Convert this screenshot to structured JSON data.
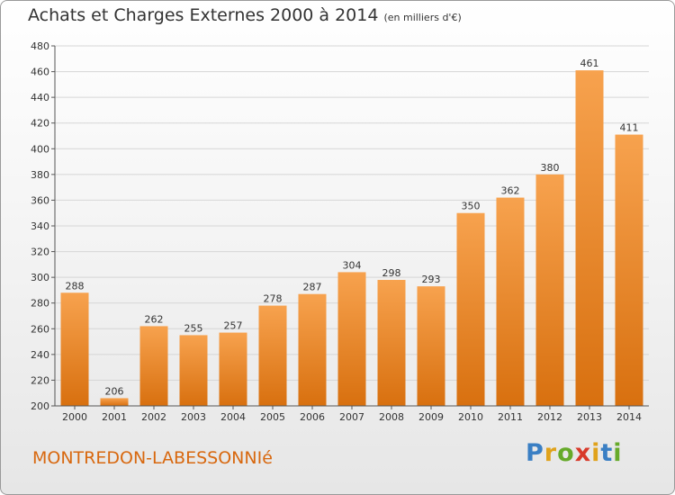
{
  "title": "Achats et Charges Externes 2000 à 2014",
  "subtitle": "(en milliers d'€)",
  "town": "MONTREDON-LABESSONNIé",
  "logo": {
    "letters": [
      "P",
      "r",
      "o",
      "x",
      "i",
      "t",
      "i"
    ],
    "colors": [
      "#3a7fc4",
      "#e0a21b",
      "#66aa2a",
      "#d83a2a",
      "#e0a21b",
      "#3a7fc4",
      "#66aa2a"
    ]
  },
  "colors": {
    "bar_light": "#f7a24e",
    "bar_dark": "#d8700f",
    "grid": "#d6d6d6",
    "axis": "#555555"
  },
  "chart_data": {
    "type": "bar",
    "title": "Achats et Charges Externes 2000 à 2014",
    "subtitle": "(en milliers d'€)",
    "categories": [
      "2000",
      "2001",
      "2002",
      "2003",
      "2004",
      "2005",
      "2006",
      "2007",
      "2008",
      "2009",
      "2010",
      "2011",
      "2012",
      "2013",
      "2014"
    ],
    "values": [
      288,
      206,
      262,
      255,
      257,
      278,
      287,
      304,
      298,
      293,
      350,
      362,
      380,
      461,
      411
    ],
    "ylim": [
      200,
      480
    ],
    "yticks": [
      200,
      220,
      240,
      260,
      280,
      300,
      320,
      340,
      360,
      380,
      400,
      420,
      440,
      460,
      480
    ],
    "grid": true,
    "xlabel": "",
    "ylabel": ""
  }
}
